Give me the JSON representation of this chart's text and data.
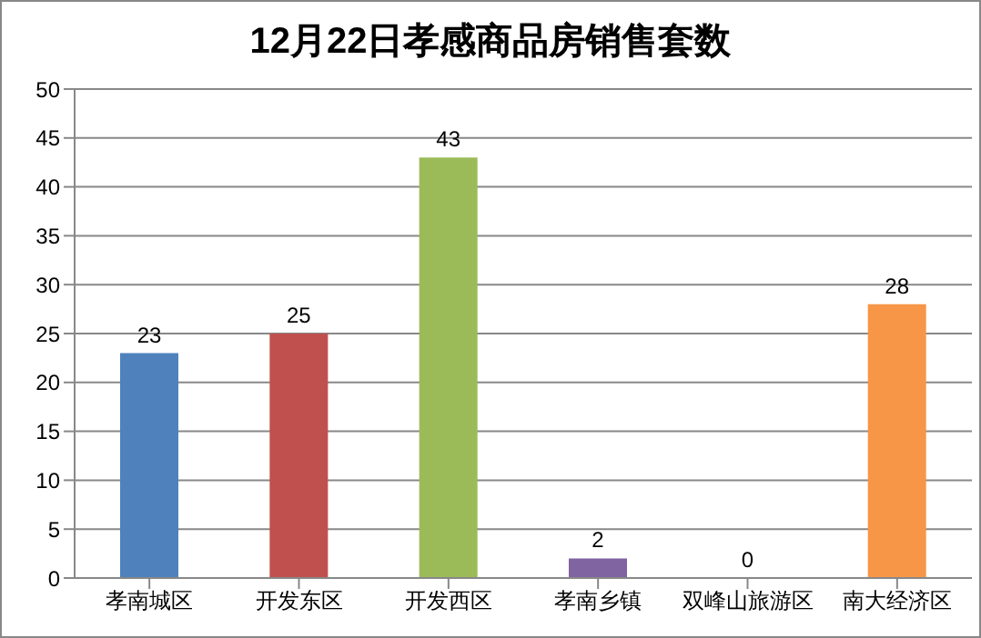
{
  "chart_data": {
    "type": "bar",
    "title": "12月22日孝感商品房销售套数",
    "categories": [
      "孝南城区",
      "开发东区",
      "开发西区",
      "孝南乡镇",
      "双峰山旅游区",
      "南大经济区"
    ],
    "values": [
      23,
      25,
      43,
      2,
      0,
      28
    ],
    "colors": [
      "#4f81bd",
      "#c0504d",
      "#9bbb59",
      "#8064a2",
      "#4bacc6",
      "#f79646"
    ],
    "ylim": [
      0,
      50
    ],
    "yticks": [
      0,
      5,
      10,
      15,
      20,
      25,
      30,
      35,
      40,
      45,
      50
    ],
    "grid": "y",
    "data_labels": true,
    "legend": false
  }
}
